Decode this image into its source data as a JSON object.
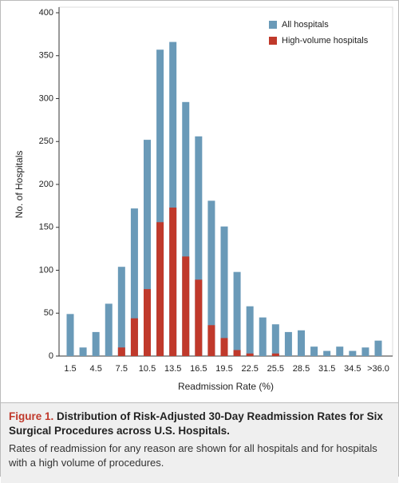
{
  "chart_data": {
    "type": "bar",
    "x_label": "Readmission Rate (%)",
    "y_label": "No. of Hospitals",
    "categories": [
      "1.5",
      null,
      "4.5",
      null,
      "7.5",
      null,
      "10.5",
      null,
      "13.5",
      null,
      "16.5",
      null,
      "19.5",
      null,
      "22.5",
      null,
      "25.5",
      null,
      "28.5",
      null,
      "31.5",
      null,
      "34.5",
      null,
      ">36.0"
    ],
    "series": [
      {
        "name": "All hospitals",
        "color": "#6a9ab8",
        "values": [
          49,
          10,
          28,
          61,
          104,
          172,
          252,
          357,
          366,
          296,
          256,
          181,
          151,
          98,
          58,
          45,
          37,
          28,
          30,
          11,
          6,
          11,
          6,
          10,
          18
        ]
      },
      {
        "name": "High-volume hospitals",
        "color": "#c0392b",
        "values": [
          0,
          0,
          0,
          0,
          10,
          44,
          78,
          156,
          173,
          116,
          89,
          36,
          21,
          7,
          3,
          0,
          3,
          0,
          0,
          0,
          0,
          0,
          0,
          0,
          0
        ]
      }
    ],
    "ylim": [
      0,
      400
    ],
    "yticks": [
      0,
      50,
      100,
      150,
      200,
      250,
      300,
      350,
      400
    ],
    "legend": "top-right"
  },
  "caption": {
    "label": "Figure 1.",
    "title": "Distribution of Risk-Adjusted 30-Day Readmission Rates for Six Surgical Procedures across U.S. Hospitals.",
    "text": "Rates of readmission for any reason are shown for all hospitals and for hospitals with a high volume of procedures."
  }
}
